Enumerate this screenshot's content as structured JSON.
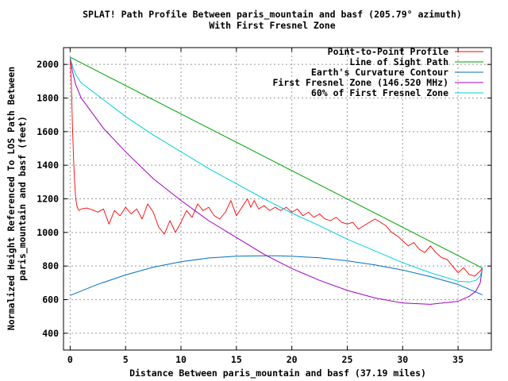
{
  "chart_data": {
    "type": "line",
    "title": "SPLAT! Path Profile Between paris_mountain and basf (205.79° azimuth)",
    "subtitle": "With First Fresnel Zone",
    "xlabel": "Distance Between paris_mountain and basf (37.19 miles)",
    "ylabel_line1": "Normalized Height Referenced To LOS Path Between",
    "ylabel_line2": "paris_mountain and basf (feet)",
    "xlim": [
      -0.6,
      38
    ],
    "ylim": [
      300,
      2100
    ],
    "xticks": [
      0,
      5,
      10,
      15,
      20,
      25,
      30,
      35
    ],
    "yticks": [
      400,
      600,
      800,
      1000,
      1200,
      1400,
      1600,
      1800,
      2000
    ],
    "grid": true,
    "legend_position": "top-right",
    "series": [
      {
        "name": "Point-to-Point Profile",
        "color": "#ff0000",
        "x": [
          0,
          0.1,
          0.2,
          0.3,
          0.4,
          0.5,
          0.6,
          0.7,
          0.8,
          1,
          1.5,
          2,
          2.5,
          3,
          3.5,
          4,
          4.5,
          5,
          5.5,
          6,
          6.5,
          7,
          7.5,
          8,
          8.5,
          9,
          9.5,
          10,
          10.5,
          11,
          11.5,
          12,
          12.5,
          13,
          13.5,
          14,
          14.5,
          15,
          15.5,
          16,
          16.3,
          16.6,
          17,
          17.5,
          18,
          18.5,
          19,
          19.5,
          20,
          20.5,
          21,
          21.5,
          22,
          22.5,
          23,
          23.5,
          24,
          24.5,
          25,
          25.5,
          26,
          26.5,
          27,
          27.5,
          28,
          28.5,
          29,
          29.5,
          30,
          30.5,
          31,
          31.5,
          32,
          32.5,
          33,
          33.5,
          34,
          34.5,
          35,
          35.5,
          36,
          36.5,
          37,
          37.19
        ],
        "values": [
          2040,
          1900,
          1650,
          1450,
          1300,
          1200,
          1160,
          1140,
          1130,
          1140,
          1145,
          1135,
          1120,
          1140,
          1050,
          1130,
          1100,
          1150,
          1110,
          1140,
          1080,
          1170,
          1120,
          1030,
          990,
          1070,
          1000,
          1060,
          1130,
          1090,
          1170,
          1130,
          1150,
          1100,
          1080,
          1120,
          1190,
          1100,
          1150,
          1200,
          1150,
          1190,
          1140,
          1160,
          1130,
          1150,
          1130,
          1150,
          1120,
          1140,
          1100,
          1120,
          1090,
          1110,
          1080,
          1070,
          1090,
          1060,
          1050,
          1060,
          1020,
          1040,
          1060,
          1080,
          1060,
          1040,
          1000,
          980,
          950,
          920,
          940,
          900,
          880,
          920,
          880,
          850,
          840,
          800,
          760,
          790,
          750,
          740,
          770,
          790
        ],
        "stroke_width": 0.9
      },
      {
        "name": "Line of Sight Path",
        "color": "#00a000",
        "x": [
          0,
          37.19
        ],
        "values": [
          2043,
          788
        ],
        "stroke_width": 1
      },
      {
        "name": "Earth's Curvature Contour",
        "color": "#0070c0",
        "x": [
          0,
          2.5,
          5,
          7.5,
          10,
          12.5,
          15,
          17.5,
          18.6,
          20,
          22.5,
          25,
          27.5,
          30,
          32.5,
          35,
          37.19
        ],
        "values": [
          625,
          691,
          747,
          793,
          826,
          848,
          859,
          861,
          861,
          858,
          849,
          831,
          807,
          776,
          737,
          690,
          629
        ],
        "stroke_width": 1
      },
      {
        "name": "First Fresnel Zone (146.520 MHz)",
        "color": "#a000c0",
        "x": [
          0,
          0.2,
          0.5,
          1,
          2,
          3,
          5,
          7.5,
          10,
          12.5,
          15,
          17.5,
          20,
          22.5,
          25,
          27.5,
          30,
          32.5,
          35,
          36,
          36.6,
          37,
          37.19
        ],
        "values": [
          2043,
          1960,
          1880,
          1800,
          1710,
          1620,
          1480,
          1320,
          1190,
          1070,
          970,
          870,
          785,
          715,
          655,
          610,
          580,
          572,
          590,
          620,
          650,
          700,
          788
        ],
        "stroke_width": 1
      },
      {
        "name": "60% of First Fresnel Zone",
        "color": "#00d0d8",
        "x": [
          0,
          0.2,
          0.5,
          1,
          2,
          3,
          5,
          7.5,
          10,
          12.5,
          15,
          17.5,
          20,
          22.5,
          25,
          27.5,
          30,
          32.5,
          35,
          36,
          36.6,
          37,
          37.19
        ],
        "values": [
          2043,
          1990,
          1940,
          1890,
          1840,
          1790,
          1690,
          1580,
          1480,
          1380,
          1290,
          1200,
          1115,
          1040,
          960,
          890,
          820,
          760,
          710,
          705,
          715,
          740,
          788
        ],
        "stroke_width": 1
      }
    ]
  }
}
